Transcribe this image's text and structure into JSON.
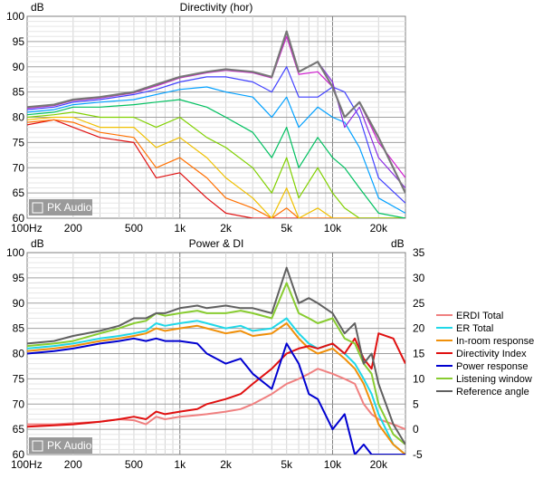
{
  "chart_data": [
    {
      "type": "line",
      "title": "Directivity (hor)",
      "ylabel": "dB",
      "ylim": [
        60,
        100
      ],
      "yticks": [
        60,
        65,
        70,
        75,
        80,
        85,
        90,
        95,
        100
      ],
      "x_scale": "log",
      "xlim": [
        100,
        30000
      ],
      "xtick_labels": [
        {
          "value": 100,
          "label": "100Hz"
        },
        {
          "value": 200,
          "label": "200"
        },
        {
          "value": 500,
          "label": "500"
        },
        {
          "value": 1000,
          "label": "1k"
        },
        {
          "value": 2000,
          "label": "2k"
        },
        {
          "value": 5000,
          "label": "5k"
        },
        {
          "value": 10000,
          "label": "10k"
        },
        {
          "value": 20000,
          "label": "20k"
        }
      ],
      "grid": true,
      "watermark": "PK Audio",
      "series": [
        {
          "color": "#8a2be2",
          "x": [
            100,
            150,
            200,
            300,
            500,
            700,
            1000,
            1500,
            2000,
            3000,
            4000,
            5000,
            6000,
            8000,
            10000,
            12000,
            15000,
            20000,
            30000
          ],
          "values": [
            82,
            82.5,
            83.5,
            84,
            85,
            86.5,
            88,
            89,
            89.5,
            89,
            88,
            97,
            89,
            91,
            87,
            78,
            82,
            72,
            66
          ]
        },
        {
          "color": "#d020d0",
          "x": [
            100,
            150,
            200,
            300,
            500,
            700,
            1000,
            1500,
            2000,
            3000,
            4000,
            5000,
            6000,
            8000,
            10000,
            12000,
            15000,
            20000,
            30000
          ],
          "values": [
            81.8,
            82.3,
            83.3,
            83.8,
            84.8,
            86.2,
            87.8,
            88.8,
            89.3,
            88.8,
            87.8,
            96,
            88.5,
            89,
            86,
            80,
            83,
            75,
            68
          ]
        },
        {
          "color": "#4040ff",
          "x": [
            100,
            150,
            200,
            300,
            500,
            700,
            1000,
            1500,
            2000,
            3000,
            4000,
            5000,
            6000,
            8000,
            10000,
            12000,
            15000,
            20000,
            30000
          ],
          "values": [
            81.5,
            82,
            83,
            83.5,
            84.5,
            85.5,
            87,
            88,
            88,
            87,
            85,
            90,
            84,
            84,
            86,
            85,
            80,
            68,
            63
          ]
        },
        {
          "color": "#00a0ff",
          "x": [
            100,
            150,
            200,
            300,
            500,
            700,
            1000,
            1500,
            2000,
            3000,
            4000,
            5000,
            6000,
            8000,
            10000,
            12000,
            15000,
            20000,
            30000
          ],
          "values": [
            81,
            81.5,
            82.5,
            83,
            83.5,
            84.5,
            85.5,
            86,
            85,
            84,
            80,
            84,
            78,
            82,
            80,
            79,
            74,
            64,
            61
          ]
        },
        {
          "color": "#00c060",
          "x": [
            100,
            150,
            200,
            300,
            500,
            700,
            1000,
            1500,
            2000,
            3000,
            4000,
            5000,
            6000,
            8000,
            10000,
            12000,
            15000,
            20000,
            30000
          ],
          "values": [
            80.5,
            81,
            82,
            82,
            82.5,
            83,
            83.5,
            82,
            80,
            77,
            72,
            78,
            70,
            76,
            72,
            70,
            66,
            61,
            60
          ]
        },
        {
          "color": "#80d000",
          "x": [
            100,
            150,
            200,
            300,
            500,
            700,
            1000,
            1500,
            2000,
            3000,
            4000,
            5000,
            6000,
            8000,
            10000,
            12000,
            15000,
            20000,
            30000
          ],
          "values": [
            80,
            80.5,
            81,
            80,
            80,
            78,
            80,
            76,
            74,
            70,
            65,
            72,
            64,
            70,
            65,
            62,
            60,
            60,
            60
          ]
        },
        {
          "color": "#f0c000",
          "x": [
            100,
            150,
            200,
            300,
            500,
            700,
            1000,
            1500,
            2000,
            3000,
            4000,
            5000,
            6000,
            8000,
            10000,
            12000,
            15000,
            20000,
            30000
          ],
          "values": [
            79.5,
            80,
            80,
            78,
            78,
            74,
            76,
            72,
            68,
            64,
            60,
            66,
            60,
            62,
            60,
            60,
            60,
            60,
            60
          ]
        },
        {
          "color": "#ff7000",
          "x": [
            100,
            150,
            200,
            300,
            500,
            700,
            1000,
            1500,
            2000,
            3000,
            4000,
            5000,
            6000,
            8000,
            10000,
            12000,
            15000,
            20000,
            30000
          ],
          "values": [
            79,
            79.5,
            79,
            77,
            76,
            70,
            72,
            68,
            64,
            62,
            60,
            62,
            60,
            60,
            60,
            60,
            60,
            60,
            60
          ]
        },
        {
          "color": "#e01010",
          "x": [
            100,
            150,
            200,
            300,
            500,
            700,
            1000,
            1500,
            2000,
            3000,
            4000,
            5000,
            6000,
            8000,
            10000,
            12000,
            15000,
            20000,
            30000
          ],
          "values": [
            78.5,
            79.5,
            78,
            76,
            75,
            68,
            69,
            64,
            61,
            60,
            60,
            60,
            60,
            60,
            60,
            60,
            60,
            60,
            60
          ]
        },
        {
          "color": "#777777",
          "x": [
            100,
            150,
            200,
            300,
            500,
            700,
            1000,
            1500,
            2000,
            3000,
            4000,
            5000,
            6000,
            8000,
            10000,
            12000,
            15000,
            20000,
            30000
          ],
          "values": [
            82,
            82.5,
            83.5,
            84,
            85,
            86.5,
            88,
            89,
            89.5,
            89,
            88,
            97,
            89,
            91,
            86,
            80,
            83,
            76,
            65
          ]
        }
      ]
    },
    {
      "type": "line",
      "title": "Power & DI",
      "ylabel": "dB",
      "ylabel_right": "dB",
      "ylim": [
        60,
        100
      ],
      "yticks": [
        60,
        65,
        70,
        75,
        80,
        85,
        90,
        95,
        100
      ],
      "ylim_right": [
        -5,
        35
      ],
      "yticks_right": [
        -5,
        0,
        5,
        10,
        15,
        20,
        25,
        30,
        35
      ],
      "x_scale": "log",
      "xlim": [
        100,
        30000
      ],
      "xtick_labels": [
        {
          "value": 100,
          "label": "100Hz"
        },
        {
          "value": 200,
          "label": "200"
        },
        {
          "value": 500,
          "label": "500"
        },
        {
          "value": 1000,
          "label": "1k"
        },
        {
          "value": 2000,
          "label": "2k"
        },
        {
          "value": 5000,
          "label": "5k"
        },
        {
          "value": 10000,
          "label": "10k"
        },
        {
          "value": 20000,
          "label": "20k"
        }
      ],
      "grid": true,
      "watermark": "PK Audio",
      "legend_position": "right",
      "series": [
        {
          "name": "ERDI Total",
          "color": "#f08080",
          "axis": "right",
          "x": [
            100,
            150,
            200,
            300,
            400,
            500,
            600,
            700,
            800,
            1000,
            1300,
            1500,
            2000,
            2500,
            3000,
            4000,
            5000,
            6000,
            7000,
            8000,
            10000,
            12000,
            14000,
            16000,
            18000,
            20000,
            25000,
            30000
          ],
          "values": [
            1,
            1,
            1.2,
            1.5,
            2,
            1.8,
            1,
            2.5,
            2,
            2.5,
            2.8,
            3,
            3.5,
            4,
            5,
            7,
            9,
            10,
            11,
            12,
            11,
            10,
            9,
            5,
            3,
            2,
            1,
            0
          ]
        },
        {
          "name": "ER Total",
          "color": "#20d8e8",
          "axis": "left",
          "x": [
            100,
            150,
            200,
            300,
            400,
            500,
            600,
            700,
            800,
            1000,
            1300,
            1500,
            2000,
            2500,
            3000,
            4000,
            5000,
            6000,
            7000,
            8000,
            10000,
            12000,
            14000,
            16000,
            18000,
            20000,
            25000,
            30000
          ],
          "values": [
            81,
            81.5,
            82,
            83,
            83.5,
            84,
            84.5,
            86,
            85.5,
            86,
            86.5,
            86,
            85,
            85.5,
            84.5,
            85,
            87,
            84,
            82,
            81,
            82,
            80,
            78,
            75,
            72,
            68,
            62,
            60
          ]
        },
        {
          "name": "In-room response",
          "color": "#f0900a",
          "axis": "left",
          "x": [
            100,
            150,
            200,
            300,
            400,
            500,
            600,
            700,
            800,
            1000,
            1300,
            1500,
            2000,
            2500,
            3000,
            4000,
            5000,
            6000,
            7000,
            8000,
            10000,
            12000,
            14000,
            16000,
            18000,
            20000,
            25000,
            30000
          ],
          "values": [
            80.5,
            81,
            81.5,
            82.5,
            83,
            83.5,
            84,
            85,
            84.5,
            85,
            85.5,
            85,
            84,
            84.5,
            83.5,
            84,
            86,
            83,
            81,
            80,
            81,
            79,
            77,
            74,
            70,
            66,
            62,
            60
          ]
        },
        {
          "name": "Directivity Index",
          "color": "#e01010",
          "axis": "right",
          "x": [
            100,
            150,
            200,
            300,
            400,
            500,
            600,
            700,
            800,
            1000,
            1300,
            1500,
            2000,
            2500,
            3000,
            4000,
            5000,
            6000,
            7000,
            8000,
            10000,
            12000,
            14000,
            16000,
            18000,
            20000,
            25000,
            30000
          ],
          "values": [
            0.5,
            0.8,
            1,
            1.5,
            2,
            2.5,
            2,
            3.5,
            3,
            3.5,
            4,
            5,
            6,
            7,
            9,
            12,
            15,
            16,
            16.5,
            16,
            17,
            15,
            18,
            14,
            12,
            19,
            18,
            13
          ]
        },
        {
          "name": "Power response",
          "color": "#0000d0",
          "axis": "left",
          "x": [
            100,
            150,
            200,
            300,
            400,
            500,
            600,
            700,
            800,
            1000,
            1300,
            1500,
            2000,
            2500,
            3000,
            4000,
            5000,
            6000,
            7000,
            8000,
            10000,
            12000,
            14000,
            16000,
            18000,
            20000,
            25000,
            30000
          ],
          "values": [
            80,
            80.5,
            81,
            82,
            82.5,
            83,
            82.5,
            83,
            82.5,
            82.5,
            82,
            80,
            78,
            79,
            76,
            73,
            82,
            78,
            72,
            71,
            65,
            68,
            60,
            62,
            60,
            60,
            60,
            60
          ]
        },
        {
          "name": "Listening window",
          "color": "#88cc30",
          "axis": "left",
          "x": [
            100,
            150,
            200,
            300,
            400,
            500,
            600,
            700,
            800,
            1000,
            1300,
            1500,
            2000,
            2500,
            3000,
            4000,
            5000,
            6000,
            7000,
            8000,
            10000,
            12000,
            14000,
            16000,
            18000,
            20000,
            25000,
            30000
          ],
          "values": [
            81.5,
            82,
            82.5,
            84,
            85,
            86,
            86.5,
            88,
            87.5,
            88,
            88.5,
            88,
            88,
            88.5,
            88,
            87,
            94,
            88,
            87,
            86,
            87,
            83,
            82,
            78,
            76,
            70,
            64,
            62
          ]
        },
        {
          "name": "Reference angle",
          "color": "#606060",
          "axis": "left",
          "x": [
            100,
            150,
            200,
            300,
            400,
            500,
            600,
            700,
            800,
            1000,
            1300,
            1500,
            2000,
            2500,
            3000,
            4000,
            5000,
            6000,
            7000,
            8000,
            10000,
            12000,
            14000,
            16000,
            18000,
            20000,
            25000,
            30000
          ],
          "values": [
            82,
            82.5,
            83.5,
            84.5,
            85.5,
            87,
            87,
            88,
            88,
            89,
            89.5,
            89,
            89.5,
            89,
            89,
            88,
            97,
            90,
            91,
            90,
            88,
            84,
            86,
            78,
            80,
            74,
            66,
            62
          ]
        }
      ]
    }
  ]
}
